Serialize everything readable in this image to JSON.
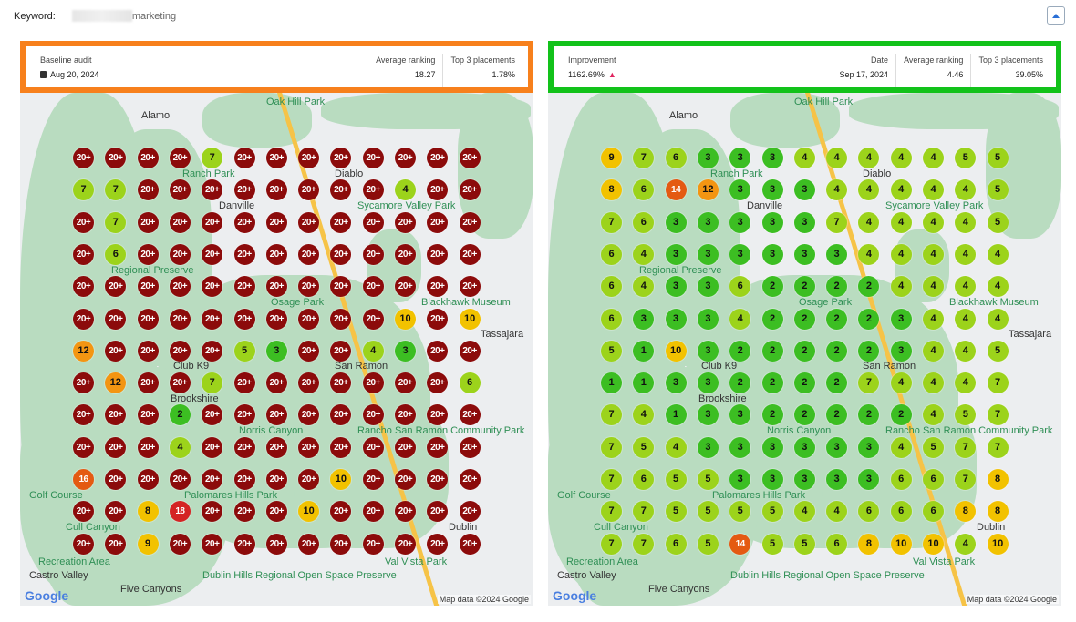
{
  "keyword": {
    "label": "Keyword:",
    "value": "marketing"
  },
  "colors": {
    "baseline_border": "#f7801c",
    "current_border": "#12c21a",
    "rank_1_3": "#3cbe22",
    "rank_4_7": "#9cd31b",
    "rank_8_10": "#f2c200",
    "rank_11_13": "#f39512",
    "rank_14_17": "#e45a12",
    "rank_18_19": "#d42424",
    "rank_20_plus": "#8c0b0b"
  },
  "baseline": {
    "label": "Baseline audit",
    "date_icon": "calendar-icon",
    "date": "Aug 20, 2024",
    "avg_label": "Average ranking",
    "avg": "18.27",
    "top3_label": "Top 3 placements",
    "top3": "1.78%",
    "grid": [
      [
        "20+",
        "20+",
        "20+",
        "20+",
        "7",
        "20+",
        "20+",
        "20+",
        "20+",
        "20+",
        "20+",
        "20+",
        "20+"
      ],
      [
        "7",
        "7",
        "20+",
        "20+",
        "20+",
        "20+",
        "20+",
        "20+",
        "20+",
        "20+",
        "4",
        "20+",
        "20+"
      ],
      [
        "20+",
        "7",
        "20+",
        "20+",
        "20+",
        "20+",
        "20+",
        "20+",
        "20+",
        "20+",
        "20+",
        "20+",
        "20+"
      ],
      [
        "20+",
        "6",
        "20+",
        "20+",
        "20+",
        "20+",
        "20+",
        "20+",
        "20+",
        "20+",
        "20+",
        "20+",
        "20+"
      ],
      [
        "20+",
        "20+",
        "20+",
        "20+",
        "20+",
        "20+",
        "20+",
        "20+",
        "20+",
        "20+",
        "20+",
        "20+",
        "20+"
      ],
      [
        "20+",
        "20+",
        "20+",
        "20+",
        "20+",
        "20+",
        "20+",
        "20+",
        "20+",
        "20+",
        "10",
        "20+",
        "10"
      ],
      [
        "12",
        "20+",
        "20+",
        "20+",
        "20+",
        "5",
        "3",
        "20+",
        "20+",
        "4",
        "3",
        "20+",
        "20+"
      ],
      [
        "20+",
        "12",
        "20+",
        "20+",
        "7",
        "20+",
        "20+",
        "20+",
        "20+",
        "20+",
        "20+",
        "20+",
        "6"
      ],
      [
        "20+",
        "20+",
        "20+",
        "2",
        "20+",
        "20+",
        "20+",
        "20+",
        "20+",
        "20+",
        "20+",
        "20+",
        "20+"
      ],
      [
        "20+",
        "20+",
        "20+",
        "4",
        "20+",
        "20+",
        "20+",
        "20+",
        "20+",
        "20+",
        "20+",
        "20+",
        "20+"
      ],
      [
        "16",
        "20+",
        "20+",
        "20+",
        "20+",
        "20+",
        "20+",
        "20+",
        "10",
        "20+",
        "20+",
        "20+",
        "20+"
      ],
      [
        "20+",
        "20+",
        "8",
        "18",
        "20+",
        "20+",
        "20+",
        "10",
        "20+",
        "20+",
        "20+",
        "20+",
        "20+"
      ],
      [
        "20+",
        "20+",
        "9",
        "20+",
        "20+",
        "20+",
        "20+",
        "20+",
        "20+",
        "20+",
        "20+",
        "20+",
        "20+"
      ]
    ]
  },
  "current": {
    "improvement_label": "Improvement",
    "improvement": "1162.69%",
    "improvement_icon": "thumbs-up-icon",
    "date_label": "Date",
    "date": "Sep 17, 2024",
    "avg_label": "Average ranking",
    "avg": "4.46",
    "top3_label": "Top 3 placements",
    "top3": "39.05%",
    "grid": [
      [
        "9",
        "7",
        "6",
        "3",
        "3",
        "3",
        "4",
        "4",
        "4",
        "4",
        "4",
        "5",
        "5"
      ],
      [
        "8",
        "6",
        "14",
        "12",
        "3",
        "3",
        "3",
        "4",
        "4",
        "4",
        "4",
        "4",
        "5"
      ],
      [
        "7",
        "6",
        "3",
        "3",
        "3",
        "3",
        "3",
        "7",
        "4",
        "4",
        "4",
        "4",
        "5"
      ],
      [
        "6",
        "4",
        "3",
        "3",
        "3",
        "3",
        "3",
        "3",
        "4",
        "4",
        "4",
        "4",
        "4"
      ],
      [
        "6",
        "4",
        "3",
        "3",
        "6",
        "2",
        "2",
        "2",
        "2",
        "4",
        "4",
        "4",
        "4"
      ],
      [
        "6",
        "3",
        "3",
        "3",
        "4",
        "2",
        "2",
        "2",
        "2",
        "3",
        "4",
        "4",
        "4"
      ],
      [
        "5",
        "1",
        "10",
        "3",
        "2",
        "2",
        "2",
        "2",
        "2",
        "3",
        "4",
        "4",
        "5"
      ],
      [
        "1",
        "1",
        "3",
        "3",
        "2",
        "2",
        "2",
        "2",
        "7",
        "4",
        "4",
        "4",
        "7"
      ],
      [
        "7",
        "4",
        "1",
        "3",
        "3",
        "2",
        "2",
        "2",
        "2",
        "2",
        "4",
        "5",
        "7"
      ],
      [
        "7",
        "5",
        "4",
        "3",
        "3",
        "3",
        "3",
        "3",
        "3",
        "4",
        "5",
        "7",
        "7"
      ],
      [
        "7",
        "6",
        "5",
        "5",
        "3",
        "3",
        "3",
        "3",
        "3",
        "6",
        "6",
        "7",
        "8"
      ],
      [
        "7",
        "7",
        "5",
        "5",
        "5",
        "5",
        "4",
        "4",
        "6",
        "6",
        "6",
        "8",
        "8"
      ],
      [
        "7",
        "7",
        "6",
        "5",
        "14",
        "5",
        "5",
        "6",
        "8",
        "10",
        "10",
        "4",
        "10"
      ]
    ]
  },
  "map": {
    "labels": [
      "Alamo",
      "Oak Hill Park",
      "Diablo",
      "Ranch Park",
      "Danville",
      "Sycamore Valley Park",
      "Regional Preserve",
      "Osage Park",
      "Blackhawk Museum",
      "Tassajara",
      "Brookshire",
      "Club K9",
      "Norris Canyon",
      "Rancho San Ramon Community Park",
      "San Ramon",
      "Palomares Hills Park",
      "Golf Course",
      "Cull Canyon",
      "Recreation Area",
      "Dublin",
      "Dublin Hills Regional Open Space Preserve",
      "Castro Valley",
      "Five Canyons",
      "Val Vista Park"
    ],
    "logo": "Google",
    "attribution": "Map data ©2024 Google"
  }
}
